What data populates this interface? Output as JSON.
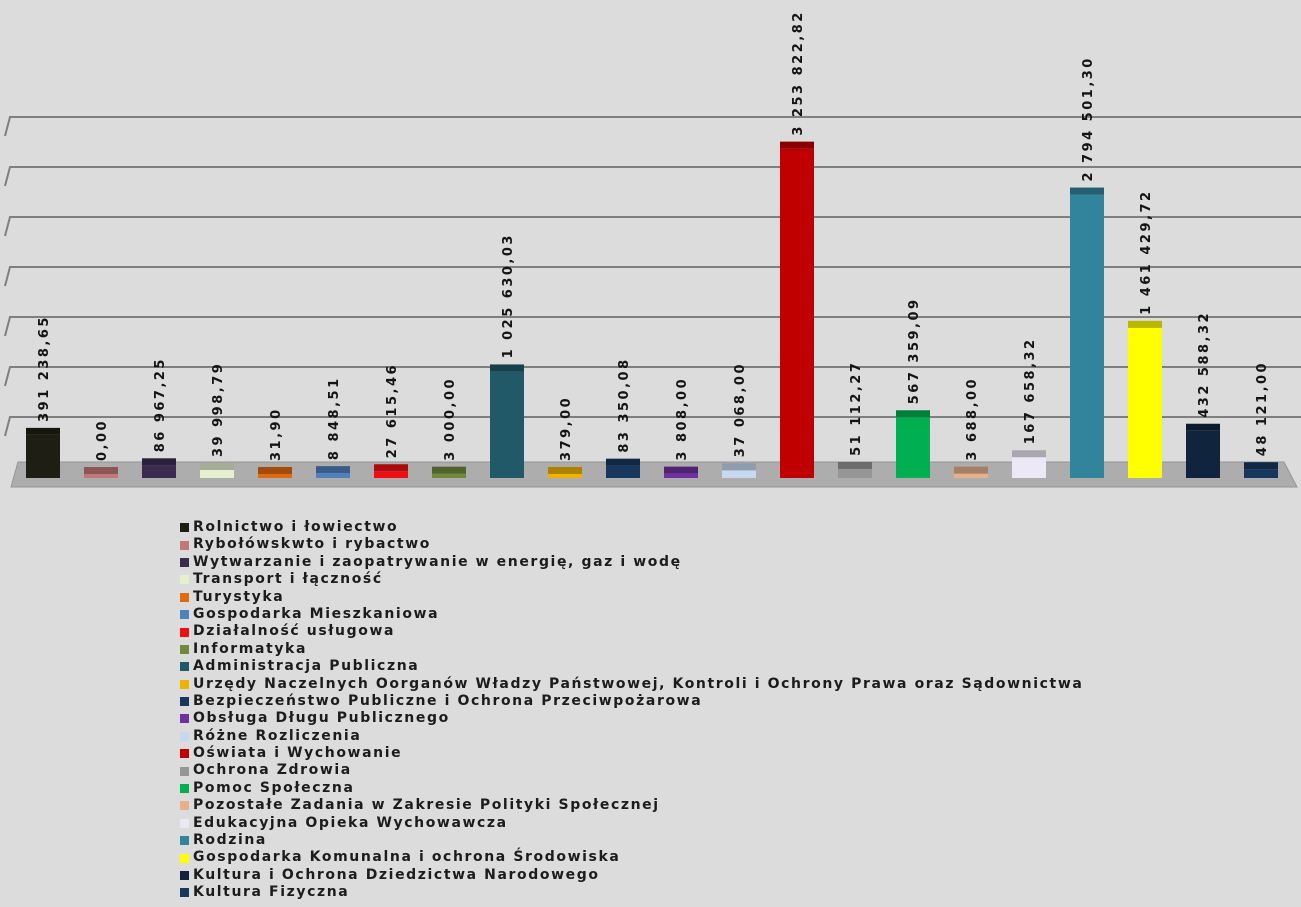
{
  "colors": {
    "background": "#dcdcdc",
    "grid": "#7f7f7f",
    "floor": "#adadad",
    "floor_edge": "#959595"
  },
  "chart_data": {
    "type": "bar",
    "style": "3d",
    "grid": true,
    "legend": "bottom",
    "ylim": [
      0,
      3500000
    ],
    "categories": [
      "Rolnictwo i łowiectwo",
      "Rybołówskwto i rybactwo",
      "Wytwarzanie i zaopatrywanie w energię, gaz i wodę",
      "Transport i łączność",
      "Turystyka",
      "Gospodarka Mieszkaniowa",
      "Działalność usługowa",
      "Informatyka",
      "Administracja Publiczna",
      "Urzędy Naczelnych Oorganów Władzy Państwowej, Kontroli i Ochrony Prawa oraz Sądownictwa",
      "Bezpieczeństwo Publiczne i Ochrona Przeciwpożarowa",
      "Obsługa Długu Publicznego",
      "Różne Rozliczenia",
      "Oświata i Wychowanie",
      "Ochrona Zdrowia",
      "Pomoc Społeczna",
      "Pozostałe Zadania w Zakresie Polityki Społecznej",
      "Edukacyjna Opieka Wychowawcza",
      "Rodzina",
      "Gospodarka Komunalna i ochrona Środowiska",
      "Kultura i Ochrona Dziedzictwa Narodowego",
      "Kultura Fizyczna"
    ],
    "values": [
      391238.65,
      0.0,
      86967.25,
      39998.79,
      31.9,
      8848.51,
      27615.46,
      3000.0,
      1025630.03,
      379.0,
      83350.08,
      3808.0,
      37068.0,
      3253822.82,
      51112.27,
      567359.09,
      3688.0,
      167658.32,
      2794501.3,
      1461429.72,
      432588.32,
      48121.0
    ],
    "value_labels": [
      "391 238,65",
      "0,00",
      "86 967,25",
      "39 998,79",
      "31,90",
      "8 848,51",
      "27 615,46",
      "3 000,00",
      "1 025 630,03",
      "379,00",
      "83 350,08",
      "3 808,00",
      "37 068,00",
      "3 253 822,82",
      "51 112,27",
      "567 359,09",
      "3 688,00",
      "167 658,32",
      "2 794 501,30",
      "1 461 429,72",
      "432 588,32",
      "48 121,00"
    ],
    "colors": [
      "#1e1e14",
      "#c27878",
      "#3b2c4f",
      "#e6f0d0",
      "#e06a10",
      "#4f81bd",
      "#ee1010",
      "#6e8b3d",
      "#215968",
      "#f0b400",
      "#17375e",
      "#7030a0",
      "#c6d9f1",
      "#c00000",
      "#969696",
      "#00b050",
      "#e6b08c",
      "#ede8f5",
      "#31849b",
      "#ffff00",
      "#10243e",
      "#17375e"
    ]
  }
}
